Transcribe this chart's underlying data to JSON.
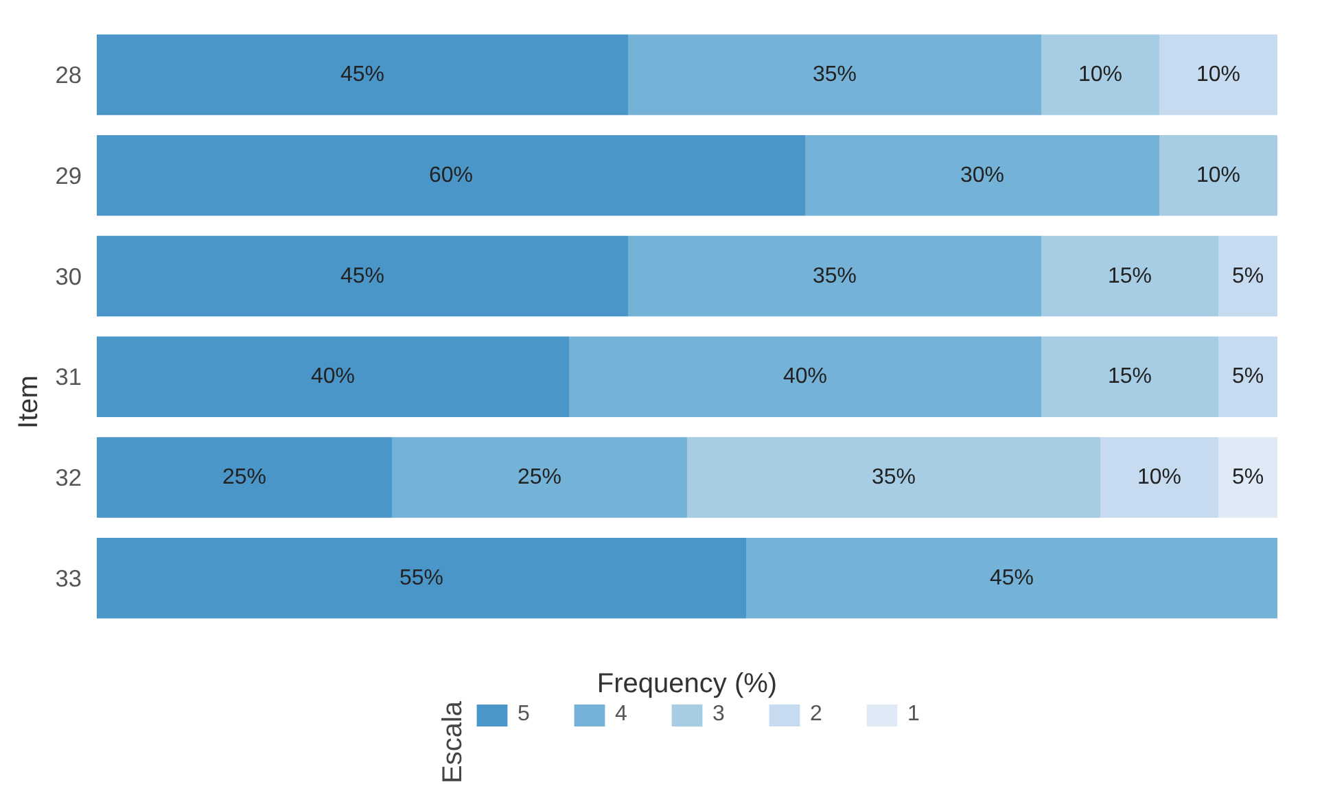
{
  "chart_data": {
    "type": "bar",
    "orientation": "horizontal",
    "stacked": true,
    "xlabel": "Frequency (%)",
    "ylabel": "Item",
    "legend_title": "Escala",
    "legend": "bottom",
    "tick_labels": "y",
    "categories": [
      "28",
      "29",
      "30",
      "31",
      "32",
      "33"
    ],
    "series": [
      {
        "name": "5",
        "color": "#4a96c8",
        "values": [
          45,
          60,
          45,
          40,
          25,
          55
        ],
        "value_labels": [
          "45%",
          "60%",
          "45%",
          "40%",
          "25%",
          "55%"
        ]
      },
      {
        "name": "4",
        "color": "#74b2d8",
        "values": [
          35,
          30,
          35,
          40,
          25,
          45
        ],
        "value_labels": [
          "35%",
          "30%",
          "35%",
          "40%",
          "25%",
          "45%"
        ]
      },
      {
        "name": "3",
        "color": "#a6cde4",
        "values": [
          10,
          10,
          15,
          15,
          35,
          null
        ],
        "value_labels": [
          "10%",
          "10%",
          "15%",
          "15%",
          "35%",
          null
        ]
      },
      {
        "name": "2",
        "color": "#c6dbef",
        "values": [
          10,
          null,
          5,
          5,
          10,
          null
        ],
        "value_labels": [
          "10%",
          null,
          "5%",
          "5%",
          "10%",
          null
        ]
      },
      {
        "name": "1",
        "color": "#deebf7",
        "values": [
          null,
          null,
          null,
          null,
          5,
          null
        ],
        "value_labels": [
          null,
          null,
          null,
          null,
          "5%",
          null
        ]
      }
    ]
  }
}
